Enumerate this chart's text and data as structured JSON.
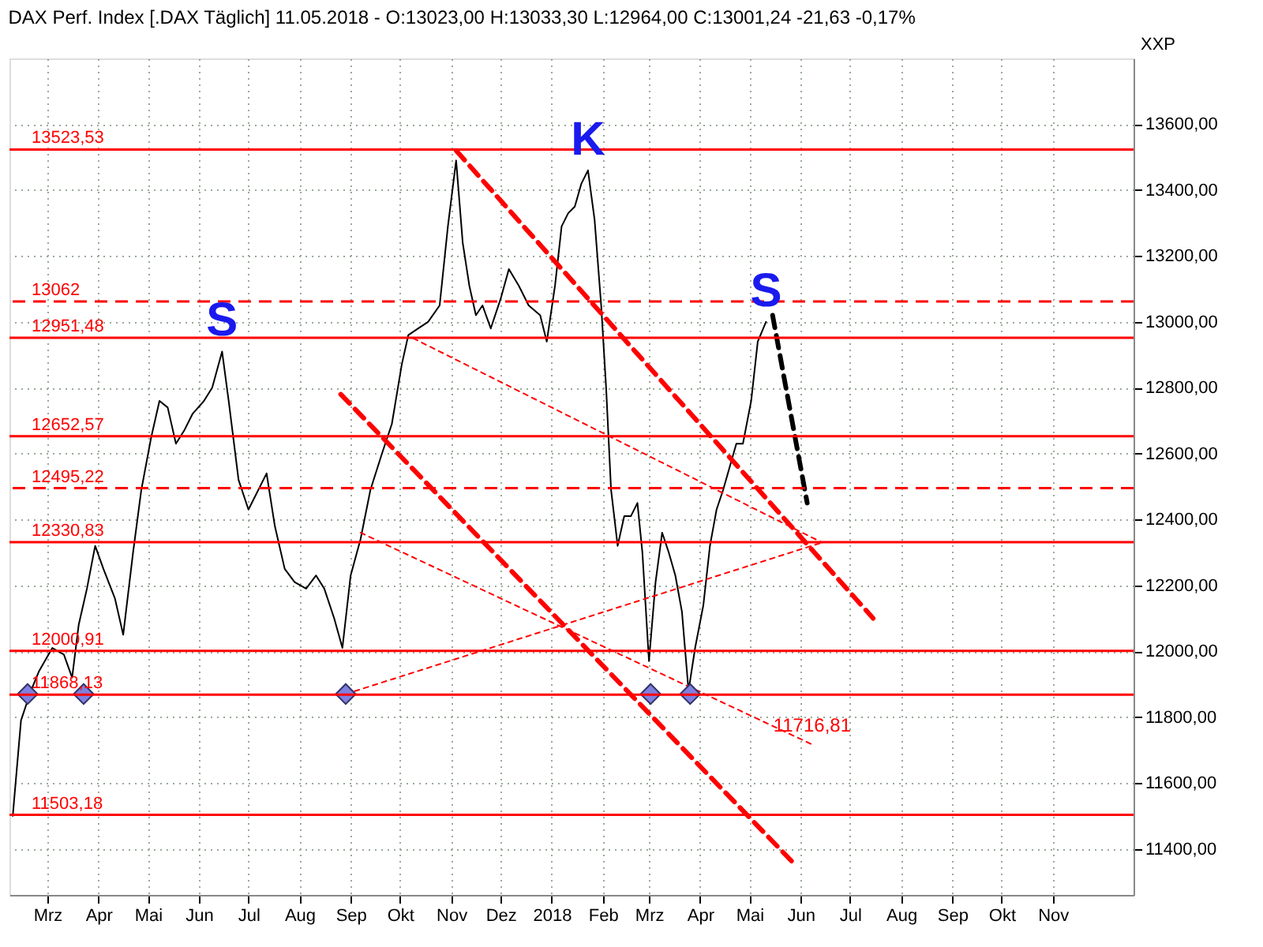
{
  "chart_data": {
    "type": "line",
    "title": "DAX Perf. Index [.DAX Täglich] 11.05.2018 - O:13023,00 H:13033,30 L:12964,00 C:13001,24 -21,63 -0,17%",
    "ylabel": "XXP",
    "xlim": [
      "2017-02-06",
      "2018-12-20"
    ],
    "xticks": [
      {
        "value": "2017-03-01",
        "label": "Mrz"
      },
      {
        "value": "2017-04-01",
        "label": "Apr"
      },
      {
        "value": "2017-05-01",
        "label": "Mai"
      },
      {
        "value": "2017-06-01",
        "label": "Jun"
      },
      {
        "value": "2017-07-01",
        "label": "Jul"
      },
      {
        "value": "2017-08-01",
        "label": "Aug"
      },
      {
        "value": "2017-09-01",
        "label": "Sep"
      },
      {
        "value": "2017-10-01",
        "label": "Okt"
      },
      {
        "value": "2017-11-01",
        "label": "Nov"
      },
      {
        "value": "2017-12-01",
        "label": "Dez"
      },
      {
        "value": "2018-01-01",
        "label": "2018"
      },
      {
        "value": "2018-02-01",
        "label": "Feb"
      },
      {
        "value": "2018-03-01",
        "label": "Mrz"
      },
      {
        "value": "2018-04-01",
        "label": "Apr"
      },
      {
        "value": "2018-05-01",
        "label": "Mai"
      },
      {
        "value": "2018-06-01",
        "label": "Jun"
      },
      {
        "value": "2018-07-01",
        "label": "Jul"
      },
      {
        "value": "2018-08-01",
        "label": "Aug"
      },
      {
        "value": "2018-09-01",
        "label": "Sep"
      },
      {
        "value": "2018-10-01",
        "label": "Okt"
      },
      {
        "value": "2018-11-01",
        "label": "Nov"
      }
    ],
    "ylim": [
      11260,
      13800
    ],
    "yticks": [
      {
        "value": 11400,
        "label": "11400,00"
      },
      {
        "value": 11600,
        "label": "11600,00"
      },
      {
        "value": 11800,
        "label": "11800,00"
      },
      {
        "value": 12000,
        "label": "12000,00"
      },
      {
        "value": 12200,
        "label": "12200,00"
      },
      {
        "value": 12400,
        "label": "12400,00"
      },
      {
        "value": 12600,
        "label": "12600,00"
      },
      {
        "value": 12800,
        "label": "12800,00"
      },
      {
        "value": 13000,
        "label": "13000,00"
      },
      {
        "value": 13200,
        "label": "13200,00"
      },
      {
        "value": 13400,
        "label": "13400,00"
      },
      {
        "value": 13600,
        "label": "13600,00"
      }
    ],
    "grid": true,
    "series": [
      {
        "color": "#000000",
        "x": [
          "2017-02-08",
          "2017-02-13",
          "2017-02-19",
          "2017-02-24",
          "2017-03-04",
          "2017-03-11",
          "2017-03-16",
          "2017-03-20",
          "2017-03-25",
          "2017-03-30",
          "2017-04-04",
          "2017-04-11",
          "2017-04-16",
          "2017-04-22",
          "2017-04-27",
          "2017-05-03",
          "2017-05-08",
          "2017-05-13",
          "2017-05-18",
          "2017-05-23",
          "2017-05-28",
          "2017-06-04",
          "2017-06-09",
          "2017-06-15",
          "2017-06-19",
          "2017-06-25",
          "2017-07-01",
          "2017-07-07",
          "2017-07-12",
          "2017-07-17",
          "2017-07-23",
          "2017-07-29",
          "2017-08-05",
          "2017-08-11",
          "2017-08-16",
          "2017-08-22",
          "2017-08-27",
          "2017-09-01",
          "2017-09-07",
          "2017-09-13",
          "2017-09-20",
          "2017-09-26",
          "2017-10-02",
          "2017-10-06",
          "2017-10-12",
          "2017-10-18",
          "2017-10-25",
          "2017-10-30",
          "2017-11-04",
          "2017-11-08",
          "2017-11-12",
          "2017-11-16",
          "2017-11-20",
          "2017-11-25",
          "2017-12-01",
          "2017-12-06",
          "2017-12-12",
          "2017-12-18",
          "2017-12-25",
          "2017-12-29",
          "2018-01-03",
          "2018-01-07",
          "2018-01-11",
          "2018-01-15",
          "2018-01-19",
          "2018-01-23",
          "2018-01-27",
          "2018-01-31",
          "2018-02-03",
          "2018-02-06",
          "2018-02-10",
          "2018-02-14",
          "2018-02-18",
          "2018-02-22",
          "2018-02-25",
          "2018-03-01",
          "2018-03-05",
          "2018-03-09",
          "2018-03-13",
          "2018-03-17",
          "2018-03-21",
          "2018-03-25",
          "2018-03-29",
          "2018-04-03",
          "2018-04-07",
          "2018-04-11",
          "2018-04-15",
          "2018-04-19",
          "2018-04-23",
          "2018-04-27",
          "2018-05-02",
          "2018-05-06",
          "2018-05-11"
        ],
        "values": [
          11500,
          11790,
          11880,
          11940,
          12010,
          11990,
          11920,
          12080,
          12190,
          12320,
          12250,
          12160,
          12050,
          12300,
          12490,
          12650,
          12760,
          12740,
          12630,
          12670,
          12720,
          12760,
          12800,
          12910,
          12760,
          12520,
          12430,
          12490,
          12540,
          12380,
          12250,
          12210,
          12190,
          12230,
          12190,
          12100,
          12010,
          12230,
          12340,
          12490,
          12600,
          12690,
          12870,
          12960,
          12980,
          13000,
          13050,
          13290,
          13490,
          13240,
          13110,
          13020,
          13050,
          12980,
          13070,
          13160,
          13110,
          13050,
          13020,
          12940,
          13110,
          13290,
          13330,
          13350,
          13420,
          13460,
          13310,
          13050,
          12800,
          12490,
          12320,
          12410,
          12410,
          12450,
          12300,
          11970,
          12210,
          12360,
          12300,
          12230,
          12120,
          11880,
          12010,
          12140,
          12320,
          12430,
          12490,
          12560,
          12630,
          12630,
          12760,
          12940,
          13000
        ]
      },
      {
        "color": "#ff0000",
        "line_style": "dashed",
        "x": [
          "2017-11-04",
          "2018-07-15"
        ],
        "values": [
          13520,
          12100
        ]
      },
      {
        "color": "#ff0000",
        "line_style": "dashed",
        "x": [
          "2017-08-26",
          "2018-05-29"
        ],
        "values": [
          12780,
          11350
        ]
      },
      {
        "color": "#ff0000",
        "line_style": "dotted",
        "x": [
          "2017-08-29",
          "2018-06-14"
        ],
        "values": [
          11870,
          12330
        ]
      },
      {
        "color": "#ff0000",
        "line_style": "dotted",
        "x": [
          "2017-10-09",
          "2018-06-14"
        ],
        "values": [
          12950,
          12330
        ]
      },
      {
        "color": "#ff0000",
        "line_style": "dotted",
        "x": [
          "2017-09-07",
          "2018-06-08"
        ],
        "values": [
          12360,
          11716.81
        ],
        "value_labels": [
          null,
          "11716,81"
        ]
      },
      {
        "color": "#000000",
        "line_style": "dashed",
        "x": [
          "2018-05-15",
          "2018-06-05"
        ],
        "values": [
          13020,
          12450
        ]
      },
      {
        "type": "scatter",
        "color": "#8080e0",
        "marker": "diamond",
        "x": [
          "2017-02-17",
          "2017-03-23",
          "2017-08-29",
          "2018-03-02",
          "2018-03-26"
        ],
        "values": [
          11870,
          11870,
          11870,
          11870,
          11870
        ]
      }
    ],
    "ref_lines": [
      {
        "axis": "y",
        "value": 13523.53,
        "label": "13523,53",
        "color": "#ff0000"
      },
      {
        "axis": "y",
        "value": 13062,
        "label": "13062",
        "color": "#ff0000",
        "line_style": "dashed"
      },
      {
        "axis": "y",
        "value": 12951.48,
        "label": "12951,48",
        "color": "#ff0000"
      },
      {
        "axis": "y",
        "value": 12652.57,
        "label": "12652,57",
        "color": "#ff0000"
      },
      {
        "axis": "y",
        "value": 12495.22,
        "label": "12495,22",
        "color": "#ff0000",
        "line_style": "dashed"
      },
      {
        "axis": "y",
        "value": 12330.83,
        "label": "12330,83",
        "color": "#ff0000"
      },
      {
        "axis": "y",
        "value": 12000.91,
        "label": "12000,91",
        "color": "#ff0000"
      },
      {
        "axis": "y",
        "value": 11868.13,
        "label": "11868,13",
        "color": "#ff0000"
      },
      {
        "axis": "y",
        "value": 11503.18,
        "label": "11503,18",
        "color": "#ff0000"
      }
    ],
    "annotations": [
      {
        "text": "S",
        "x": "2017-06-15",
        "y": 12910
      },
      {
        "text": "K",
        "x": "2018-01-23",
        "y": 13460
      },
      {
        "text": "S",
        "x": "2018-05-11",
        "y": 13000
      }
    ]
  }
}
